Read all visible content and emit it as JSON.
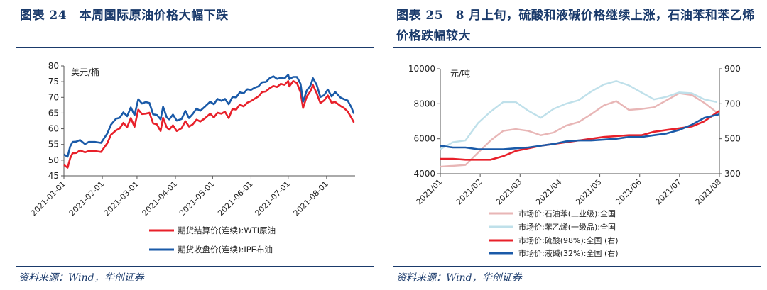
{
  "left": {
    "title": "图表 24　本周国际原油价格大幅下跌",
    "source": "资料来源：Wind，华创证券",
    "chart_data": {
      "type": "line",
      "title": "",
      "ylabel": "美元/桶",
      "ylim": [
        45,
        80
      ],
      "yticks": [
        "45",
        "50",
        "55",
        "60",
        "65",
        "70",
        "75",
        "80"
      ],
      "x_tick_labels": [
        "2021-01-01",
        "2021-02-01",
        "2021-03-01",
        "2021-04-01",
        "2021-05-01",
        "2021-06-01",
        "2021-07-01",
        "2021-08-01"
      ],
      "x_tick_days": [
        0,
        31,
        59,
        90,
        120,
        151,
        181,
        212
      ],
      "x_range_days": [
        0,
        235
      ],
      "legend": [
        "期货结算价(连续):WTI原油",
        "期货收盘价(连续):IPE布油"
      ],
      "series": [
        {
          "name": "期货结算价(连续):WTI原油",
          "color": "#e8202a",
          "x": [
            0,
            3,
            5,
            7,
            10,
            13,
            17,
            20,
            25,
            30,
            35,
            38,
            42,
            45,
            48,
            51,
            54,
            57,
            60,
            63,
            66,
            69,
            72,
            75,
            78,
            80,
            83,
            85,
            88,
            91,
            95,
            98,
            101,
            104,
            107,
            110,
            114,
            118,
            121,
            124,
            127,
            130,
            133,
            136,
            139,
            142,
            145,
            148,
            151,
            154,
            157,
            160,
            163,
            166,
            169,
            172,
            175,
            178,
            181,
            182,
            185,
            188,
            191,
            193,
            196,
            199,
            201,
            204,
            207,
            210,
            213,
            216,
            219,
            223,
            226,
            229,
            232,
            234
          ],
          "y": [
            48.5,
            47.6,
            50.5,
            52.2,
            52.3,
            53.1,
            52.5,
            52.9,
            52.9,
            52.6,
            55.4,
            58.1,
            59.5,
            60.1,
            61.9,
            60.5,
            63.4,
            60.6,
            66.1,
            64.7,
            64.8,
            65.1,
            61.7,
            61.4,
            59.3,
            63.5,
            60.4,
            59.7,
            61.1,
            59.3,
            60.2,
            62.4,
            60.7,
            61.4,
            62.9,
            62.3,
            63.4,
            64.8,
            63.6,
            65.1,
            64.8,
            65.4,
            63.4,
            66.3,
            66.1,
            67.7,
            67.1,
            68.3,
            68.8,
            69.6,
            70.3,
            71.7,
            71.9,
            72.9,
            73.6,
            73.3,
            74.3,
            74.0,
            75.2,
            73.5,
            75.2,
            74.6,
            71.6,
            66.6,
            70.3,
            72.0,
            73.9,
            71.3,
            68.2,
            69.0,
            70.6,
            68.3,
            68.5,
            67.3,
            66.6,
            65.5,
            63.5,
            62.0
          ]
        },
        {
          "name": "期货收盘价(连续):IPE布油",
          "color": "#1a5aa8",
          "x": [
            0,
            3,
            5,
            7,
            10,
            13,
            17,
            20,
            25,
            30,
            35,
            38,
            42,
            45,
            48,
            51,
            54,
            57,
            60,
            63,
            66,
            69,
            72,
            75,
            78,
            80,
            83,
            85,
            88,
            91,
            95,
            98,
            101,
            104,
            107,
            110,
            114,
            118,
            121,
            124,
            127,
            130,
            133,
            136,
            139,
            142,
            145,
            148,
            151,
            154,
            157,
            160,
            163,
            166,
            169,
            172,
            175,
            178,
            181,
            182,
            185,
            188,
            191,
            193,
            196,
            199,
            201,
            204,
            207,
            210,
            213,
            216,
            219,
            223,
            226,
            229,
            232,
            234
          ],
          "y": [
            51.8,
            51.1,
            54.3,
            55.8,
            55.9,
            56.4,
            55.1,
            55.8,
            55.8,
            55.5,
            58.5,
            61.3,
            63.2,
            63.5,
            65.2,
            64.0,
            66.8,
            64.3,
            69.4,
            68.0,
            68.5,
            68.2,
            64.6,
            64.4,
            63.0,
            67.0,
            63.6,
            63.0,
            64.5,
            62.6,
            63.1,
            65.7,
            63.4,
            64.7,
            66.4,
            65.7,
            67.1,
            68.6,
            67.8,
            69.5,
            68.9,
            69.5,
            67.8,
            70.1,
            70.0,
            71.6,
            71.3,
            72.6,
            72.4,
            73.1,
            73.5,
            74.8,
            74.9,
            76.1,
            76.7,
            75.9,
            76.2,
            76.0,
            77.2,
            75.8,
            76.5,
            76.5,
            74.3,
            68.6,
            72.2,
            73.8,
            76.1,
            74.0,
            70.1,
            70.7,
            72.5,
            70.3,
            71.7,
            70.0,
            69.4,
            69.0,
            66.8,
            64.8
          ]
        }
      ]
    }
  },
  "right": {
    "title": "图表 25　8 月上旬，硫酸和液碱价格继续上涨，石油苯和苯乙烯价格跌幅较大",
    "source": "资料来源：Wind，华创证券",
    "chart_data": {
      "type": "line",
      "title": "",
      "ylabel_left": "元/吨",
      "ylim_left": [
        4000,
        10000
      ],
      "yticks_left": [
        "4000",
        "6000",
        "8000",
        "10000"
      ],
      "ylim_right": [
        300,
        900
      ],
      "yticks_right": [
        "300",
        "500",
        "700",
        "900"
      ],
      "x_tick_labels": [
        "2021/01",
        "2021/02",
        "2021/03",
        "2021/04",
        "2021/05",
        "2021/06",
        "2021/07",
        "2021/08"
      ],
      "x_range_days": [
        0,
        222
      ],
      "legend": [
        "市场价:石油苯(工业级):全国",
        "市场价:苯乙烯(一级品):全国",
        "市场价:硫酸(98%):全国 (右)",
        "市场价:液碱(32%):全国 (右)"
      ],
      "series": [
        {
          "name": "市场价:石油苯(工业级):全国",
          "axis": "left",
          "color": "#e8b6b6",
          "x": [
            0,
            10,
            20,
            30,
            40,
            50,
            60,
            70,
            80,
            90,
            100,
            110,
            120,
            130,
            140,
            150,
            160,
            170,
            180,
            190,
            200,
            210,
            220
          ],
          "y": [
            4400,
            4450,
            4500,
            5200,
            5900,
            6450,
            6550,
            6450,
            6200,
            6350,
            6750,
            6950,
            7400,
            7900,
            8150,
            7650,
            7700,
            7800,
            8200,
            8600,
            8500,
            8050,
            7500
          ]
        },
        {
          "name": "市场价:苯乙烯(一级品):全国",
          "axis": "left",
          "color": "#bfe0ea",
          "x": [
            0,
            10,
            20,
            30,
            40,
            50,
            60,
            70,
            80,
            90,
            100,
            110,
            120,
            130,
            140,
            150,
            160,
            170,
            180,
            190,
            200,
            210,
            220
          ],
          "y": [
            5400,
            5800,
            5900,
            6900,
            7550,
            8100,
            8100,
            7600,
            7200,
            7700,
            8000,
            8200,
            8700,
            9100,
            9300,
            9050,
            8650,
            8250,
            8400,
            8650,
            8600,
            8250,
            8100
          ]
        },
        {
          "name": "市场价:硫酸(98%):全国 (右)",
          "axis": "right",
          "color": "#e8202a",
          "x": [
            0,
            10,
            20,
            30,
            40,
            50,
            60,
            70,
            80,
            90,
            100,
            110,
            120,
            130,
            140,
            150,
            160,
            170,
            180,
            190,
            200,
            210,
            222
          ],
          "y": [
            385,
            385,
            380,
            380,
            380,
            400,
            430,
            445,
            460,
            470,
            480,
            490,
            500,
            510,
            515,
            520,
            520,
            540,
            550,
            560,
            570,
            600,
            660
          ]
        },
        {
          "name": "市场价:液碱(32%):全国 (右)",
          "axis": "right",
          "color": "#1a5aa8",
          "x": [
            0,
            10,
            20,
            30,
            40,
            50,
            60,
            70,
            80,
            90,
            100,
            110,
            120,
            130,
            140,
            150,
            160,
            170,
            180,
            190,
            200,
            210,
            222
          ],
          "y": [
            460,
            450,
            450,
            440,
            440,
            440,
            445,
            450,
            460,
            470,
            485,
            490,
            490,
            495,
            500,
            510,
            510,
            520,
            530,
            550,
            580,
            620,
            640
          ]
        }
      ]
    }
  }
}
